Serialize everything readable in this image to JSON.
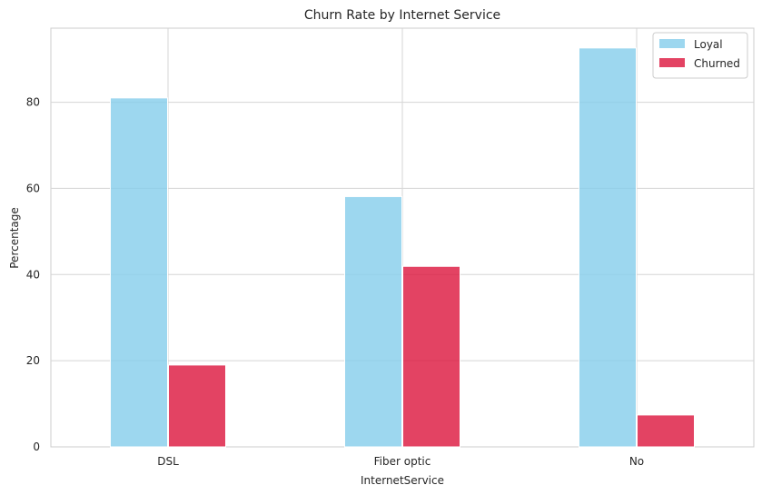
{
  "chart_data": {
    "type": "bar",
    "title": "Churn Rate by Internet Service",
    "xlabel": "InternetService",
    "ylabel": "Percentage",
    "categories": [
      "DSL",
      "Fiber optic",
      "No"
    ],
    "series": [
      {
        "name": "Loyal",
        "values": [
          81.0,
          58.1,
          92.6
        ],
        "color": "#87ceeb"
      },
      {
        "name": "Churned",
        "values": [
          19.0,
          41.9,
          7.4
        ],
        "color": "#dc143c"
      }
    ],
    "ylim": [
      0,
      97.2
    ],
    "yticks": [
      0,
      20,
      40,
      60,
      80
    ],
    "grid": true,
    "legend_position": "top-right"
  }
}
